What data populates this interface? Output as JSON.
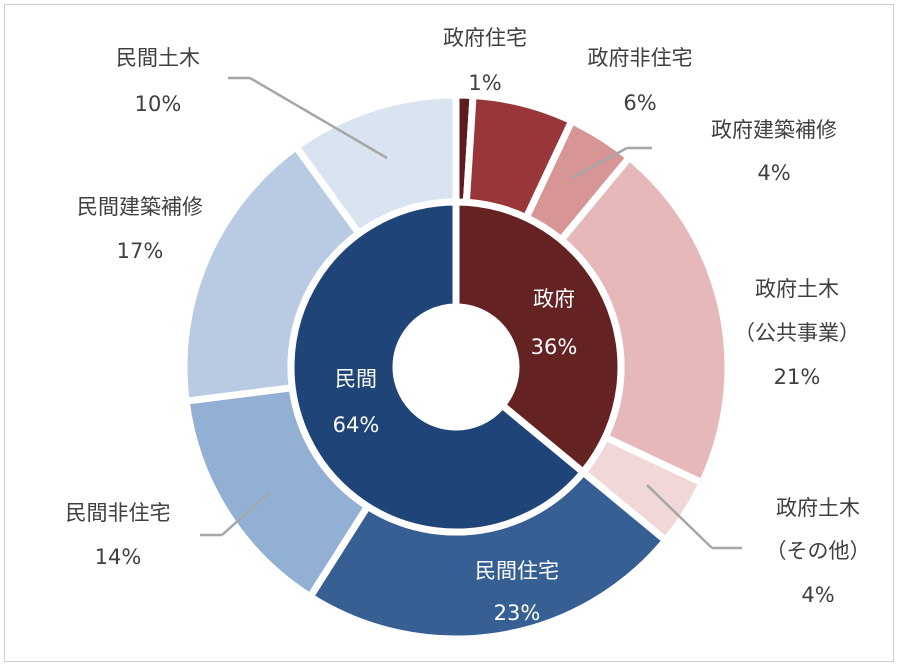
{
  "chart_data": {
    "type": "pie",
    "variant": "nested-donut",
    "colors": {
      "gov_dark": "#642223",
      "priv_dark": "#1f4477",
      "gov_housing": "#5e1c1f",
      "gov_nonres": "#98363a",
      "gov_repair": "#d89596",
      "gov_civil_public": "#e6b8b9",
      "gov_civil_other": "#f1d7d7",
      "priv_housing": "#365f93",
      "priv_nonres": "#92afd4",
      "priv_repair": "#b8cbe3",
      "priv_civil": "#dae3f0",
      "leader_line": "#a6a6a6"
    },
    "inner": [
      {
        "name": "政府",
        "value": 36,
        "label": "36%"
      },
      {
        "name": "民間",
        "value": 64,
        "label": "64%"
      }
    ],
    "outer": [
      {
        "name": "政府住宅",
        "value": 1,
        "label": "1%"
      },
      {
        "name": "政府非住宅",
        "value": 6,
        "label": "6%"
      },
      {
        "name": "政府建築補修",
        "value": 4,
        "label": "4%"
      },
      {
        "name": "政府土木",
        "name2": "（公共事業）",
        "value": 21,
        "label": "21%"
      },
      {
        "name": "政府土木",
        "name2": "（その他）",
        "value": 4,
        "label": "4%"
      },
      {
        "name": "民間住宅",
        "value": 23,
        "label": "23%"
      },
      {
        "name": "民間非住宅",
        "value": 14,
        "label": "14%"
      },
      {
        "name": "民間建築補修",
        "value": 17,
        "label": "17%"
      },
      {
        "name": "民間土木",
        "value": 10,
        "label": "10%"
      }
    ]
  }
}
